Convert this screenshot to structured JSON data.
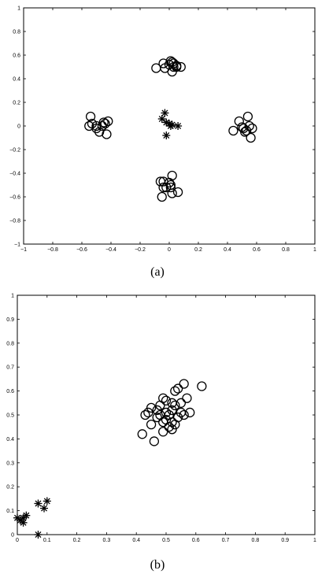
{
  "chart_data": [
    {
      "type": "scatter",
      "caption": "(a)",
      "xlim": [
        -1,
        1
      ],
      "ylim": [
        -1,
        1
      ],
      "xticks": [
        -1,
        -0.8,
        -0.6,
        -0.4,
        -0.2,
        0,
        0.2,
        0.4,
        0.6,
        0.8,
        1
      ],
      "xtick_labels": [
        "−1",
        "−0.8",
        "−0.6",
        "−0.4",
        "−0.2",
        "0",
        "0.2",
        "0.4",
        "0.6",
        "0.8",
        "1"
      ],
      "yticks": [
        -1,
        -0.8,
        -0.6,
        -0.4,
        -0.2,
        0,
        0.2,
        0.4,
        0.6,
        0.8,
        1
      ],
      "ytick_labels": [
        "−1",
        "−0.8",
        "−0.6",
        "−0.4",
        "−0.2",
        "0",
        "0.2",
        "0.4",
        "0.6",
        "0.8",
        "1"
      ],
      "grid": false,
      "series": [
        {
          "marker": "circle",
          "points": [
            [
              -0.09,
              0.49
            ],
            [
              -0.04,
              0.53
            ],
            [
              -0.03,
              0.49
            ],
            [
              0.0,
              0.52
            ],
            [
              0.01,
              0.55
            ],
            [
              0.02,
              0.54
            ],
            [
              0.03,
              0.53
            ],
            [
              0.05,
              0.5
            ],
            [
              0.08,
              0.5
            ],
            [
              0.03,
              0.5
            ],
            [
              0.02,
              0.46
            ],
            [
              0.05,
              0.51
            ],
            [
              -0.55,
              0.0
            ],
            [
              -0.54,
              0.08
            ],
            [
              -0.53,
              0.02
            ],
            [
              -0.5,
              0.0
            ],
            [
              -0.48,
              -0.05
            ],
            [
              -0.46,
              0.0
            ],
            [
              -0.45,
              0.03
            ],
            [
              -0.44,
              0.02
            ],
            [
              -0.42,
              0.04
            ],
            [
              -0.43,
              -0.07
            ],
            [
              -0.5,
              -0.02
            ],
            [
              0.44,
              -0.04
            ],
            [
              0.48,
              0.04
            ],
            [
              0.5,
              -0.01
            ],
            [
              0.51,
              -0.02
            ],
            [
              0.53,
              -0.04
            ],
            [
              0.54,
              0.08
            ],
            [
              0.55,
              0.0
            ],
            [
              0.56,
              -0.1
            ],
            [
              0.57,
              -0.02
            ],
            [
              0.52,
              -0.05
            ],
            [
              -0.06,
              -0.47
            ],
            [
              -0.04,
              -0.47
            ],
            [
              -0.04,
              -0.52
            ],
            [
              -0.05,
              -0.6
            ],
            [
              -0.02,
              -0.52
            ],
            [
              0.0,
              -0.48
            ],
            [
              0.01,
              -0.5
            ],
            [
              0.02,
              -0.42
            ],
            [
              0.02,
              -0.57
            ],
            [
              0.06,
              -0.56
            ],
            [
              0.01,
              -0.52
            ]
          ]
        },
        {
          "marker": "asterisk",
          "points": [
            [
              -0.05,
              0.06
            ],
            [
              -0.03,
              0.11
            ],
            [
              -0.02,
              0.03
            ],
            [
              0.0,
              0.02
            ],
            [
              0.01,
              0.0
            ],
            [
              0.02,
              0.01
            ],
            [
              0.06,
              0.0
            ],
            [
              -0.02,
              -0.08
            ]
          ]
        }
      ]
    },
    {
      "type": "scatter",
      "caption": "(b)",
      "xlim": [
        0,
        1
      ],
      "ylim": [
        0,
        1
      ],
      "xticks": [
        0,
        0.1,
        0.2,
        0.3,
        0.4,
        0.5,
        0.6,
        0.7,
        0.8,
        0.9,
        1
      ],
      "xtick_labels": [
        "0",
        "0.1",
        "0.2",
        "0.3",
        "0.4",
        "0.5",
        "0.6",
        "0.7",
        "0.8",
        "0.9",
        "1"
      ],
      "yticks": [
        0,
        0.1,
        0.2,
        0.3,
        0.4,
        0.5,
        0.6,
        0.7,
        0.8,
        0.9,
        1
      ],
      "ytick_labels": [
        "0",
        "0.1",
        "0.2",
        "0.3",
        "0.4",
        "0.5",
        "0.6",
        "0.7",
        "0.8",
        "0.9",
        "1"
      ],
      "grid": false,
      "series": [
        {
          "marker": "circle",
          "points": [
            [
              0.42,
              0.42
            ],
            [
              0.43,
              0.5
            ],
            [
              0.44,
              0.51
            ],
            [
              0.45,
              0.46
            ],
            [
              0.45,
              0.53
            ],
            [
              0.46,
              0.39
            ],
            [
              0.47,
              0.52
            ],
            [
              0.47,
              0.49
            ],
            [
              0.48,
              0.54
            ],
            [
              0.48,
              0.5
            ],
            [
              0.49,
              0.47
            ],
            [
              0.49,
              0.43
            ],
            [
              0.5,
              0.51
            ],
            [
              0.5,
              0.56
            ],
            [
              0.5,
              0.48
            ],
            [
              0.51,
              0.5
            ],
            [
              0.51,
              0.45
            ],
            [
              0.52,
              0.52
            ],
            [
              0.52,
              0.55
            ],
            [
              0.52,
              0.47
            ],
            [
              0.53,
              0.6
            ],
            [
              0.53,
              0.54
            ],
            [
              0.54,
              0.49
            ],
            [
              0.54,
              0.61
            ],
            [
              0.55,
              0.51
            ],
            [
              0.55,
              0.55
            ],
            [
              0.56,
              0.63
            ],
            [
              0.56,
              0.5
            ],
            [
              0.57,
              0.57
            ],
            [
              0.58,
              0.51
            ],
            [
              0.62,
              0.62
            ],
            [
              0.52,
              0.44
            ],
            [
              0.49,
              0.57
            ],
            [
              0.53,
              0.46
            ]
          ]
        },
        {
          "marker": "asterisk",
          "points": [
            [
              0.0,
              0.07
            ],
            [
              0.01,
              0.06
            ],
            [
              0.02,
              0.05
            ],
            [
              0.02,
              0.07
            ],
            [
              0.03,
              0.08
            ],
            [
              0.07,
              0.13
            ],
            [
              0.09,
              0.11
            ],
            [
              0.1,
              0.14
            ],
            [
              0.07,
              0.0
            ]
          ]
        }
      ]
    }
  ]
}
